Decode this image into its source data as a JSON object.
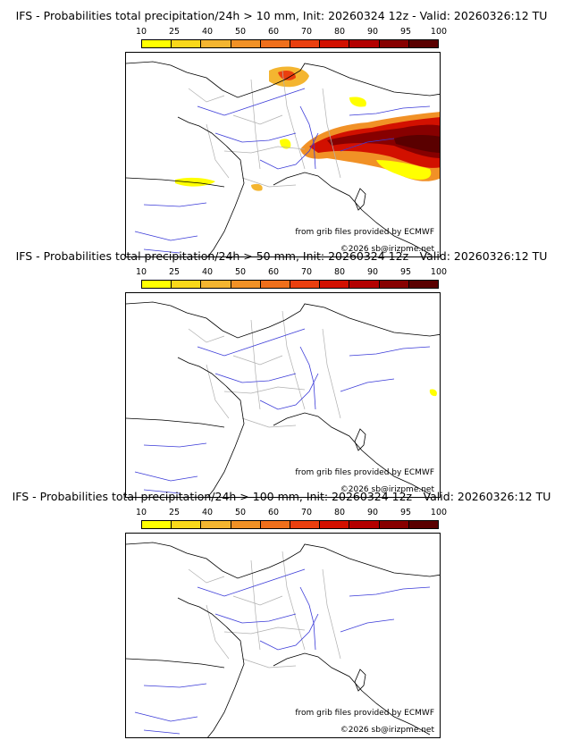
{
  "scale": {
    "ticks": [
      "10",
      "25",
      "40",
      "50",
      "60",
      "70",
      "80",
      "90",
      "95",
      "100"
    ],
    "colors": [
      "#ffff00",
      "#f9d81a",
      "#f4b530",
      "#f19126",
      "#ef6f1b",
      "#ea3f0f",
      "#d21000",
      "#b30000",
      "#870000",
      "#5a0000"
    ]
  },
  "panels": [
    {
      "title": "IFS - Probabilities total precipitation/24h > 10 mm, Init: 20260324 12z - Valid: 20260326:12 TU",
      "credit_line1": "from grib files provided by ECMWF",
      "credit_line2": "©2026 sb@irizpme.net",
      "precip_level": "high"
    },
    {
      "title": "IFS - Probabilities total precipitation/24h > 50 mm, Init: 20260324 12z - Valid: 20260326:12 TU",
      "credit_line1": "from grib files provided by ECMWF",
      "credit_line2": "©2026 sb@irizpme.net",
      "precip_level": "trace"
    },
    {
      "title": "IFS - Probabilities total precipitation/24h > 100 mm, Init: 20260324 12z - Valid: 20260326:12 TU",
      "credit_line1": "from grib files provided by ECMWF",
      "credit_line2": "©2026 sb@irizpme.net",
      "precip_level": "none"
    }
  ]
}
